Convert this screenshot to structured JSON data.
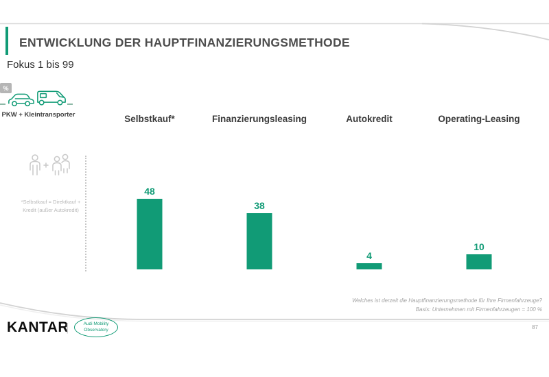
{
  "slide": {
    "title": "ENTWICKLUNG DER HAUPTFINANZIERUNGSMETHODE",
    "subtitle": "Fokus 1 bis 99",
    "unit_badge": "%",
    "vehicle_label": "PKW + Kleintransporter",
    "footnote_line1": "*Selbstkauf = Direktkauf +",
    "footnote_line2": "Kredit (außer Autokredit)",
    "question_line1": "Welches ist derzeit die Hauptfinanzierungsmethode für Ihre Firmenfahrzeuge?",
    "question_line2": "Basis: Unternehmen mit Firmenfahrzeugen = 100 %",
    "page_number": "87"
  },
  "footer": {
    "kantar_logo": "KANTAR",
    "divider": "|",
    "partner_line1": "Audi Mobility",
    "partner_line2": "Observatory"
  },
  "colors": {
    "accent_green": "#119b76",
    "title_gray": "#4d4d4d",
    "footnote_gray": "#b8b8b8"
  },
  "chart_data": {
    "type": "bar",
    "categories": [
      "Selbstkauf*",
      "Finanzierungsleasing",
      "Autokredit",
      "Operating-Leasing"
    ],
    "values": [
      48,
      38,
      4,
      10
    ],
    "title": "Entwicklung der Hauptfinanzierungsmethode",
    "subtitle": "Fokus 1 bis 99",
    "unit": "%",
    "xlabel": "",
    "ylabel": "",
    "ylim": [
      0,
      100
    ],
    "grid": false,
    "legend": false,
    "value_labels": true,
    "bar_color": "#119b76"
  }
}
